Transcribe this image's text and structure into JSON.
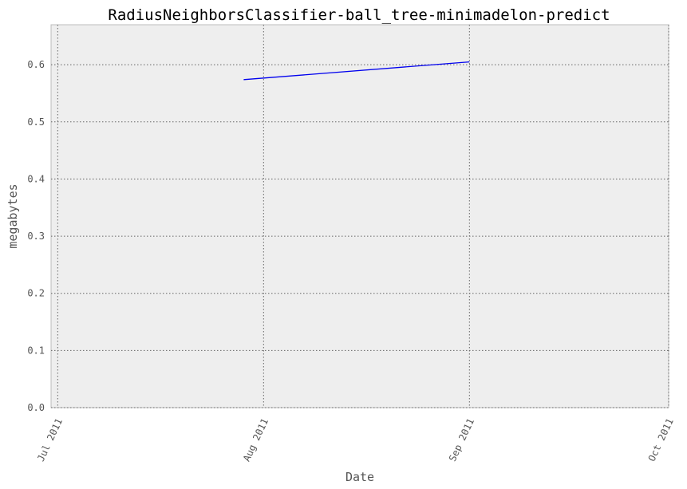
{
  "chart_data": {
    "type": "line",
    "title": "RadiusNeighborsClassifier-ball_tree-minimadelon-predict",
    "xlabel": "Date",
    "ylabel": "megabytes",
    "x_ticks": [
      "2011-07-01",
      "2011-08-01",
      "2011-09-01",
      "2011-10-01"
    ],
    "x_tick_labels": [
      "Jul 2011",
      "Aug 2011",
      "Sep 2011",
      "Oct 2011"
    ],
    "xlim": [
      "2011-06-30",
      "2011-10-01"
    ],
    "y_ticks": [
      0.0,
      0.1,
      0.2,
      0.3,
      0.4,
      0.5,
      0.6
    ],
    "y_tick_labels": [
      "0.0",
      "0.1",
      "0.2",
      "0.3",
      "0.4",
      "0.5",
      "0.6"
    ],
    "ylim": [
      0.0,
      0.67
    ],
    "grid": true,
    "series": [
      {
        "color": "#0000ee",
        "x": [
          "2011-07-29",
          "2011-09-01"
        ],
        "y": [
          0.574,
          0.605
        ]
      }
    ]
  }
}
